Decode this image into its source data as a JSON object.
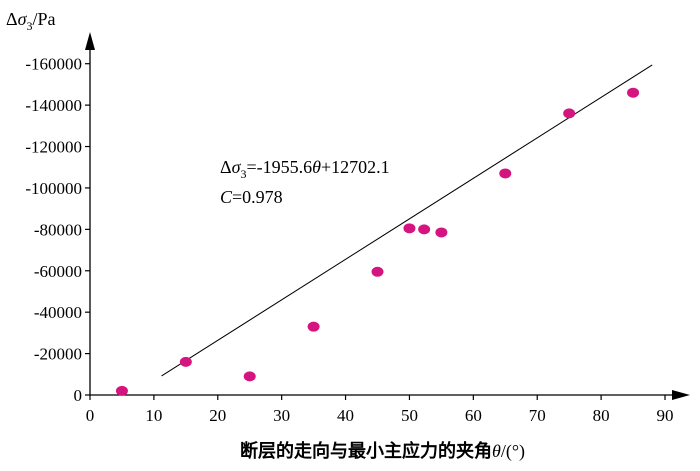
{
  "chart_data": {
    "type": "scatter",
    "title": "",
    "xlabel": "断层的走向与最小主应力的夹角θ/(°)",
    "ylabel": "Δσ3/Pa",
    "ylabel_parts": {
      "delta": "Δ",
      "sigma": "σ",
      "sub": "3",
      "unit": "/Pa"
    },
    "xlabel_parts": {
      "text": "断层的走向与最小主应力的夹角",
      "theta": "θ",
      "unit": "/(°)"
    },
    "xlim": [
      0,
      90
    ],
    "ylim": [
      0,
      -170000
    ],
    "x_ticks": [
      0,
      10,
      20,
      30,
      40,
      50,
      60,
      70,
      80,
      90
    ],
    "x_tick_labels": [
      "0",
      "10",
      "20",
      "30",
      "40",
      "50",
      "60",
      "70",
      "80",
      "90"
    ],
    "y_ticks": [
      0,
      -20000,
      -40000,
      -60000,
      -80000,
      -100000,
      -120000,
      -140000,
      -160000
    ],
    "y_tick_labels": [
      "0",
      "-20000",
      "-40000",
      "-60000",
      "-80000",
      "-100000",
      "-120000",
      "-140000",
      "-160000"
    ],
    "grid": false,
    "series": [
      {
        "marker_color": "#d4157f",
        "points": [
          {
            "x": 5,
            "y": -2000
          },
          {
            "x": 15,
            "y": -16000
          },
          {
            "x": 25,
            "y": -9000
          },
          {
            "x": 35,
            "y": -33000
          },
          {
            "x": 45,
            "y": -59500
          },
          {
            "x": 50,
            "y": -80500
          },
          {
            "x": 52.3,
            "y": -80000
          },
          {
            "x": 55,
            "y": -78500
          },
          {
            "x": 65,
            "y": -107000
          },
          {
            "x": 75,
            "y": -136000
          },
          {
            "x": 85,
            "y": -146000
          }
        ]
      }
    ],
    "fit_line": {
      "slope": -1955.6,
      "intercept": 12702.1,
      "x_range": [
        6.5,
        88
      ]
    },
    "annotations": {
      "equation_parts": {
        "delta": "Δ",
        "sigma": "σ",
        "sub": "3",
        "eq": "=-1955.6",
        "theta": "θ",
        "tail": "+12702.1"
      },
      "corr_parts": {
        "c": "C",
        "value": "=0.978"
      }
    }
  }
}
